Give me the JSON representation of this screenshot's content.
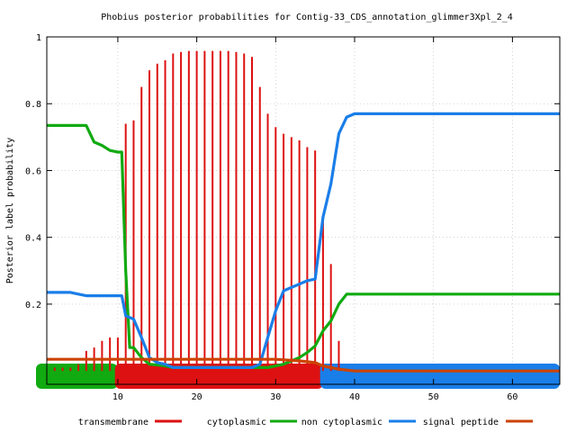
{
  "chart_data": {
    "type": "line",
    "title": "Phobius posterior probabilities for Contig-33_CDS_annotation_glimmer3Xpl_2_4",
    "xlabel": "",
    "ylabel": "Posterior label probability",
    "xlim": [
      1,
      66
    ],
    "ylim": [
      -0.04,
      1.0
    ],
    "x_ticks": [
      10,
      20,
      30,
      40,
      50,
      60
    ],
    "x_tick_labels": [
      "10",
      "20",
      "30",
      "40",
      "50",
      "60"
    ],
    "y_ticks": [
      0.2,
      0.4,
      0.6,
      0.8,
      1.0
    ],
    "y_tick_labels": [
      "0.2",
      "0.4",
      "0.6",
      "0.8",
      "1"
    ],
    "grid": true,
    "legend_position": "bottom",
    "colors": {
      "transmembrane": "#dd1111",
      "cytoplasmic": "#11aa11",
      "non_cytoplasmic": "#1a7ee8",
      "signal_peptide": "#cc4400"
    },
    "segments": [
      {
        "label": "cytoplasmic",
        "from": 1,
        "to": 10
      },
      {
        "label": "transmembrane",
        "from": 11,
        "to": 36
      },
      {
        "label": "non cytoplasmic",
        "from": 37,
        "to": 66
      }
    ],
    "series": [
      {
        "name": "transmembrane",
        "kind": "impulse",
        "x": [
          1,
          2,
          3,
          4,
          5,
          6,
          7,
          8,
          9,
          10,
          11,
          12,
          13,
          14,
          15,
          16,
          17,
          18,
          19,
          20,
          21,
          22,
          23,
          24,
          25,
          26,
          27,
          28,
          29,
          30,
          31,
          32,
          33,
          34,
          35,
          36,
          37,
          38
        ],
        "values": [
          0.0,
          0.01,
          0.01,
          0.01,
          0.02,
          0.06,
          0.07,
          0.09,
          0.1,
          0.1,
          0.74,
          0.75,
          0.85,
          0.9,
          0.92,
          0.93,
          0.95,
          0.955,
          0.958,
          0.958,
          0.958,
          0.958,
          0.958,
          0.958,
          0.955,
          0.95,
          0.94,
          0.85,
          0.77,
          0.73,
          0.71,
          0.7,
          0.69,
          0.67,
          0.66,
          0.45,
          0.32,
          0.09
        ]
      },
      {
        "name": "cytoplasmic",
        "kind": "line",
        "x": [
          1,
          2,
          3,
          4,
          5,
          6,
          7,
          8,
          9,
          10,
          10.5,
          11,
          11.5,
          12,
          13,
          14,
          15,
          16,
          17,
          18,
          19,
          20,
          21,
          22,
          23,
          24,
          25,
          26,
          27,
          28,
          29,
          30,
          31,
          32,
          33,
          34,
          35,
          36,
          37,
          38,
          39,
          40,
          45,
          50,
          55,
          60,
          65,
          66
        ],
        "values": [
          0.735,
          0.735,
          0.735,
          0.735,
          0.735,
          0.735,
          0.685,
          0.675,
          0.66,
          0.655,
          0.655,
          0.3,
          0.07,
          0.07,
          0.04,
          0.02,
          0.018,
          0.015,
          0.01,
          0.01,
          0.01,
          0.01,
          0.01,
          0.01,
          0.01,
          0.01,
          0.01,
          0.01,
          0.01,
          0.01,
          0.01,
          0.015,
          0.02,
          0.03,
          0.04,
          0.055,
          0.075,
          0.12,
          0.15,
          0.2,
          0.23,
          0.23,
          0.23,
          0.23,
          0.23,
          0.23,
          0.23,
          0.23
        ]
      },
      {
        "name": "non cytoplasmic",
        "kind": "line",
        "x": [
          1,
          2,
          3,
          4,
          5,
          6,
          7,
          8,
          9,
          10,
          10.5,
          11,
          12,
          13,
          14,
          15,
          16,
          17,
          18,
          19,
          20,
          21,
          22,
          23,
          24,
          25,
          26,
          27,
          28,
          29,
          30,
          31,
          32,
          33,
          34,
          35,
          36,
          37,
          38,
          39,
          40,
          45,
          50,
          55,
          60,
          65,
          66
        ],
        "values": [
          0.235,
          0.235,
          0.235,
          0.235,
          0.23,
          0.225,
          0.225,
          0.225,
          0.225,
          0.225,
          0.225,
          0.165,
          0.155,
          0.1,
          0.04,
          0.025,
          0.02,
          0.01,
          0.01,
          0.01,
          0.01,
          0.01,
          0.01,
          0.01,
          0.01,
          0.01,
          0.01,
          0.01,
          0.02,
          0.1,
          0.18,
          0.24,
          0.25,
          0.26,
          0.27,
          0.275,
          0.46,
          0.56,
          0.71,
          0.76,
          0.77,
          0.77,
          0.77,
          0.77,
          0.77,
          0.77,
          0.77
        ]
      },
      {
        "name": "signal peptide",
        "kind": "line",
        "x": [
          1,
          5,
          10,
          15,
          20,
          25,
          30,
          33,
          35,
          36,
          37,
          38,
          40,
          45,
          50,
          55,
          60,
          65,
          66
        ],
        "values": [
          0.035,
          0.035,
          0.035,
          0.035,
          0.035,
          0.035,
          0.035,
          0.03,
          0.025,
          0.015,
          0.01,
          0.005,
          0.0,
          0.0,
          0.0,
          0.0,
          0.0,
          0.0,
          0.0
        ]
      }
    ]
  }
}
